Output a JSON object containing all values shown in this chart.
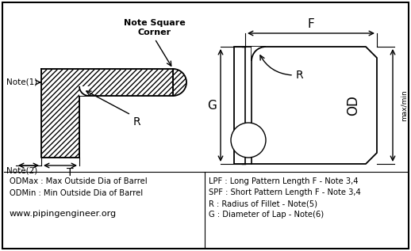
{
  "bg_color": "#ffffff",
  "legend_lines": [
    "ODMax : Max Outside Dia of Barrel",
    "ODMin : Min Outside Dia of Barrel"
  ],
  "legend_lines2": [
    "LPF : Long Pattern Length F - Note 3,4",
    "SPF : Short Pattern Length F - Note 3,4",
    "R : Radius of Fillet - Note(5)",
    "G : Diameter of Lap - Note(6)"
  ],
  "website": "www.pipingengineer.org",
  "note_square_corner": "Note Square\nCorner",
  "label_note1": "Note(1)",
  "label_note2": "Note(2)",
  "label_R_left": "R",
  "label_T": "T",
  "label_F": "F",
  "label_R_right": "R",
  "label_G": "G",
  "label_OD": "OD",
  "label_maxmin": "max/min"
}
